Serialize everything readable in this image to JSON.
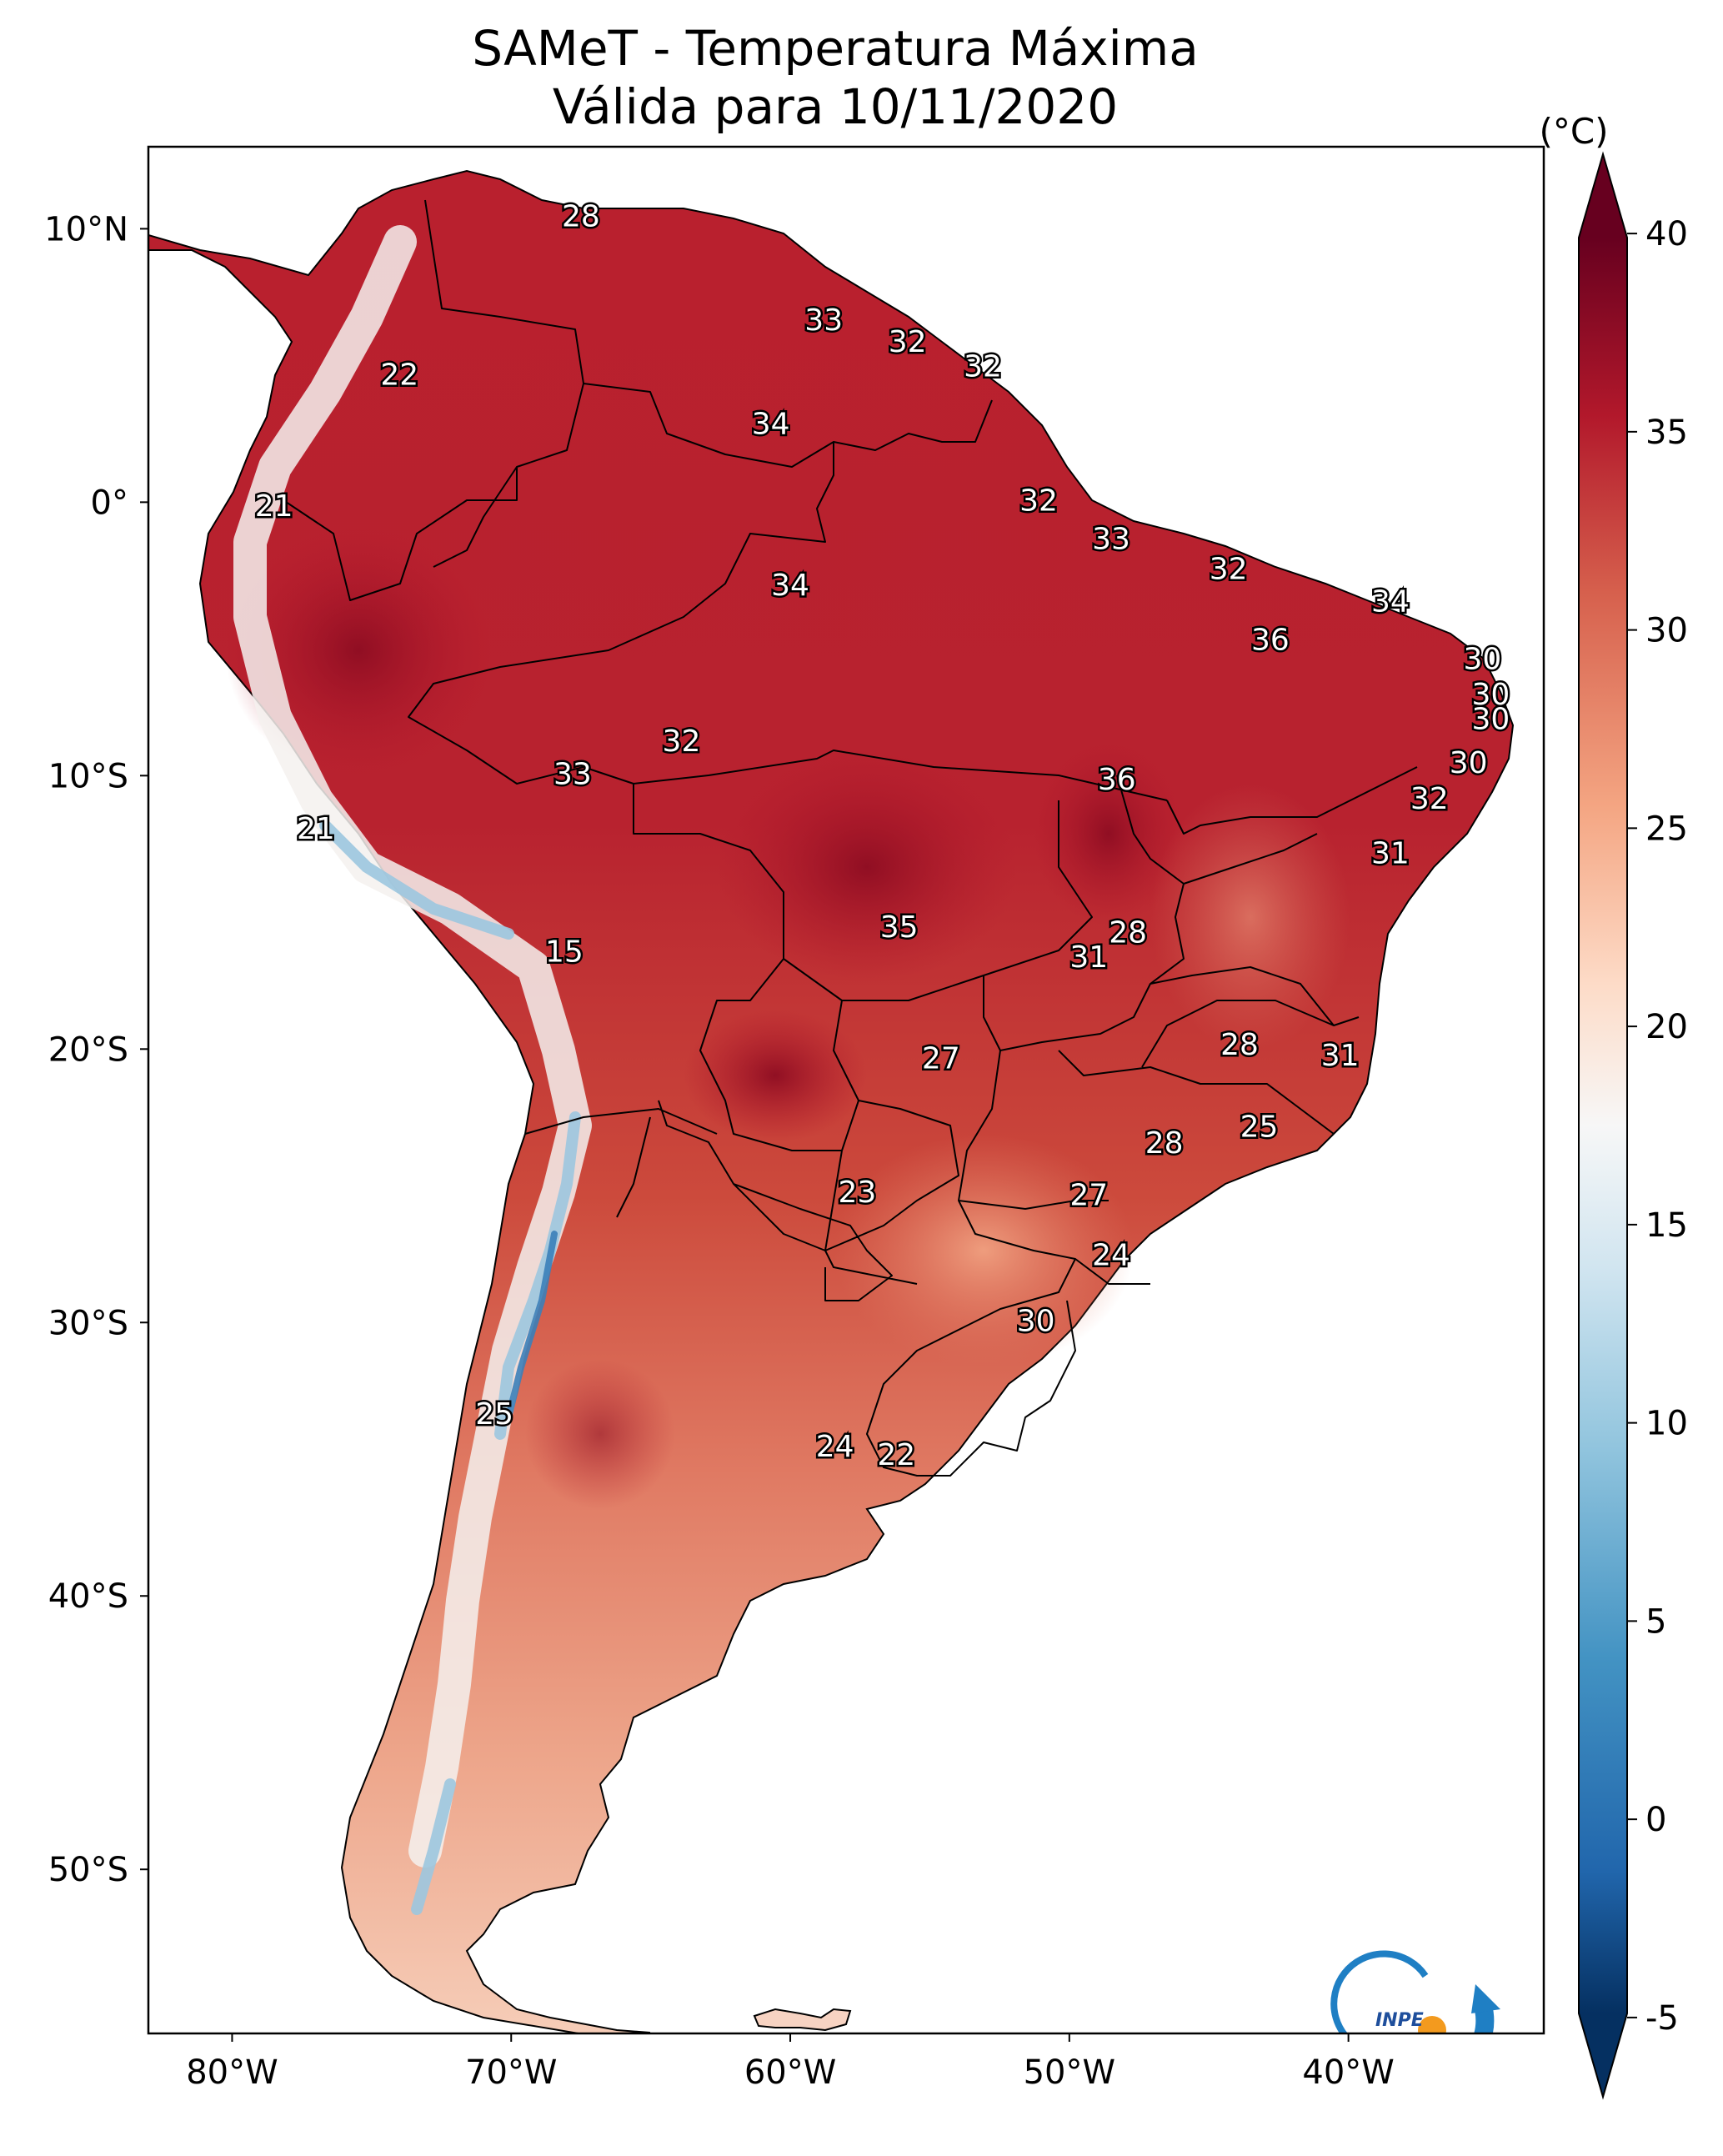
{
  "title_line1": "SAMeT - Temperatura Máxima",
  "title_line2": "Válida para 10/11/2020",
  "map": {
    "lon_range": [
      -83,
      -33
    ],
    "lat_range": [
      -56,
      13
    ],
    "lon_ticks": [
      {
        "value": -80,
        "label": "80°W"
      },
      {
        "value": -70,
        "label": "70°W"
      },
      {
        "value": -60,
        "label": "60°W"
      },
      {
        "value": -50,
        "label": "50°W"
      },
      {
        "value": -40,
        "label": "40°W"
      }
    ],
    "lat_ticks": [
      {
        "value": 10,
        "label": "10°N"
      },
      {
        "value": 0,
        "label": "0°"
      },
      {
        "value": -10,
        "label": "10°S"
      },
      {
        "value": -20,
        "label": "20°S"
      },
      {
        "value": -30,
        "label": "30°S"
      },
      {
        "value": -40,
        "label": "40°S"
      },
      {
        "value": -50,
        "label": "50°S"
      }
    ],
    "city_labels": [
      {
        "text": "28",
        "lon": -67.5,
        "lat": 10.4
      },
      {
        "text": "33",
        "lon": -58.8,
        "lat": 6.6
      },
      {
        "text": "32",
        "lon": -55.8,
        "lat": 5.8
      },
      {
        "text": "32",
        "lon": -53.1,
        "lat": 4.9
      },
      {
        "text": "22",
        "lon": -74.0,
        "lat": 4.6
      },
      {
        "text": "34",
        "lon": -60.7,
        "lat": 2.8
      },
      {
        "text": "21",
        "lon": -78.5,
        "lat": -0.2
      },
      {
        "text": "32",
        "lon": -51.1,
        "lat": 0.0
      },
      {
        "text": "33",
        "lon": -48.5,
        "lat": -1.4
      },
      {
        "text": "32",
        "lon": -44.3,
        "lat": -2.5
      },
      {
        "text": "34",
        "lon": -60.0,
        "lat": -3.1
      },
      {
        "text": "34",
        "lon": -38.5,
        "lat": -3.7
      },
      {
        "text": "36",
        "lon": -42.8,
        "lat": -5.1
      },
      {
        "text": "30",
        "lon": -35.2,
        "lat": -5.8
      },
      {
        "text": "30",
        "lon": -34.9,
        "lat": -7.1
      },
      {
        "text": "30",
        "lon": -34.9,
        "lat": -8.0
      },
      {
        "text": "32",
        "lon": -63.9,
        "lat": -8.8
      },
      {
        "text": "30",
        "lon": -35.7,
        "lat": -9.6
      },
      {
        "text": "33",
        "lon": -67.8,
        "lat": -10.0
      },
      {
        "text": "36",
        "lon": -48.3,
        "lat": -10.2
      },
      {
        "text": "32",
        "lon": -37.1,
        "lat": -10.9
      },
      {
        "text": "21",
        "lon": -77.0,
        "lat": -12.0
      },
      {
        "text": "31",
        "lon": -38.5,
        "lat": -12.9
      },
      {
        "text": "35",
        "lon": -56.1,
        "lat": -15.6
      },
      {
        "text": "28",
        "lon": -47.9,
        "lat": -15.8
      },
      {
        "text": "31",
        "lon": -49.3,
        "lat": -16.7
      },
      {
        "text": "15",
        "lon": -68.1,
        "lat": -16.5
      },
      {
        "text": "28",
        "lon": -43.9,
        "lat": -19.9
      },
      {
        "text": "31",
        "lon": -40.3,
        "lat": -20.3
      },
      {
        "text": "27",
        "lon": -54.6,
        "lat": -20.4
      },
      {
        "text": "25",
        "lon": -43.2,
        "lat": -22.9
      },
      {
        "text": "28",
        "lon": -46.6,
        "lat": -23.5
      },
      {
        "text": "23",
        "lon": -57.6,
        "lat": -25.3
      },
      {
        "text": "27",
        "lon": -49.3,
        "lat": -25.4
      },
      {
        "text": "24",
        "lon": -48.5,
        "lat": -27.6
      },
      {
        "text": "30",
        "lon": -51.2,
        "lat": -30.0
      },
      {
        "text": "25",
        "lon": -70.6,
        "lat": -33.4
      },
      {
        "text": "24",
        "lon": -58.4,
        "lat": -34.6
      },
      {
        "text": "22",
        "lon": -56.2,
        "lat": -34.9
      }
    ]
  },
  "colorbar": {
    "unit": "(°C)",
    "range": [
      -7,
      42
    ],
    "ticks": [
      {
        "value": 40,
        "label": "40"
      },
      {
        "value": 35,
        "label": "35"
      },
      {
        "value": 30,
        "label": "30"
      },
      {
        "value": 25,
        "label": "25"
      },
      {
        "value": 20,
        "label": "20"
      },
      {
        "value": 15,
        "label": "15"
      },
      {
        "value": 10,
        "label": "10"
      },
      {
        "value": 5,
        "label": "5"
      },
      {
        "value": 0,
        "label": "0"
      },
      {
        "value": -5,
        "label": "-5"
      }
    ],
    "colors": [
      "#053061",
      "#2166ac",
      "#4393c3",
      "#92c5de",
      "#d1e5f0",
      "#f7f7f7",
      "#fddbc7",
      "#f4a582",
      "#d6604d",
      "#b2182b",
      "#67001f"
    ]
  },
  "logo": {
    "text": "INPE",
    "ring_color": "#1f7fc4",
    "dot_color": "#f39a1e"
  }
}
